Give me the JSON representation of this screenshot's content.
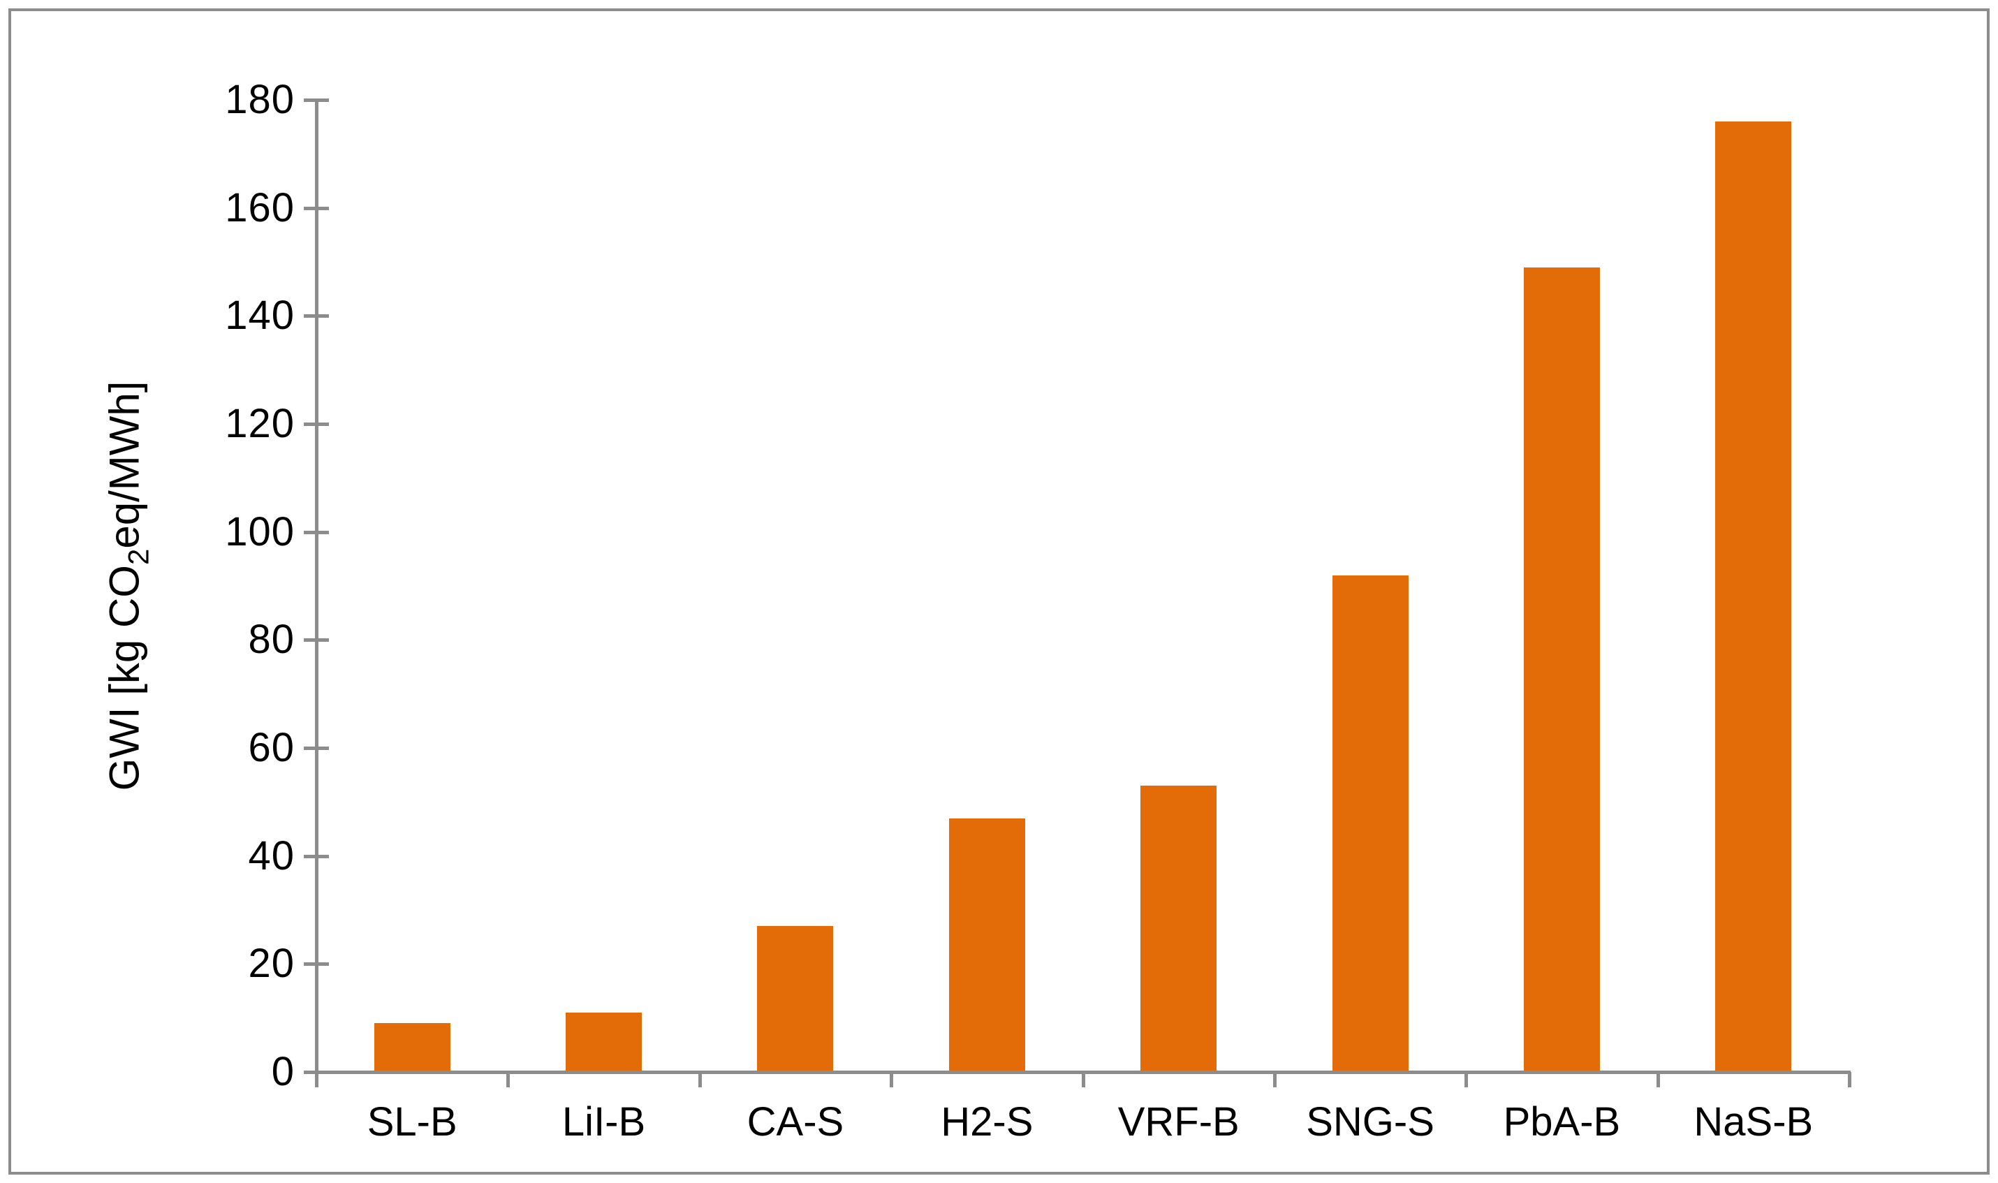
{
  "chart_data": {
    "type": "bar",
    "categories": [
      "SL-B",
      "LiI-B",
      "CA-S",
      "H2-S",
      "VRF-B",
      "SNG-S",
      "PbA-B",
      "NaS-B"
    ],
    "values": [
      9,
      11,
      27,
      47,
      53,
      92,
      149,
      176
    ],
    "title": "",
    "xlabel": "",
    "ylabel": "GWI [kg CO2eq/MWh]",
    "ylabel_parts": {
      "prefix": "GWI [kg CO",
      "sub": "2",
      "suffix": "eq/MWh]"
    },
    "ylim": [
      0,
      180
    ],
    "ytick_interval": 20,
    "ytick_labels": [
      "0",
      "20",
      "40",
      "60",
      "80",
      "100",
      "120",
      "140",
      "160",
      "180"
    ],
    "grid": false,
    "legend": false,
    "bar_color": "#E36C09",
    "axis_color": "#8C8C8C",
    "text_color": "#000000",
    "frame_border_color": "#8C8C8C"
  }
}
